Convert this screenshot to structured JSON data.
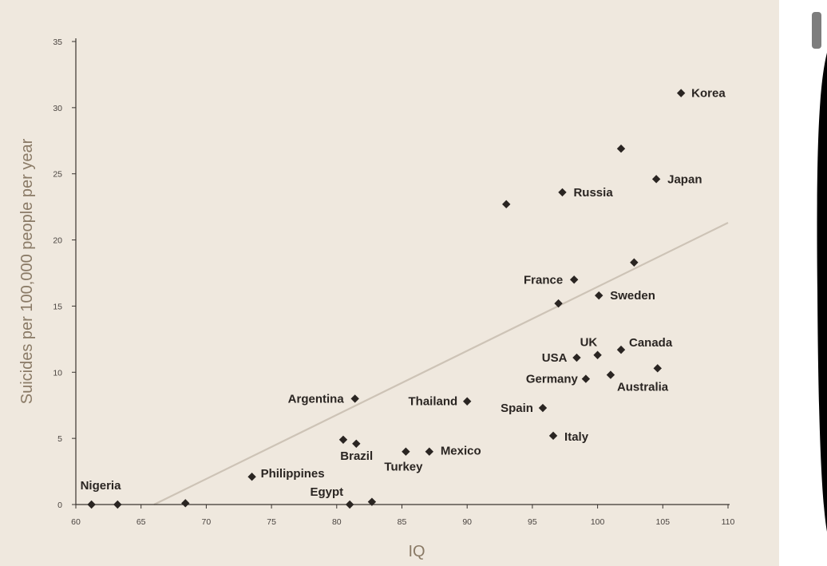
{
  "chart_data": {
    "type": "scatter",
    "xlabel": "IQ",
    "ylabel": "Suicides per 100,000 people per year",
    "xlim": [
      60,
      110
    ],
    "ylim": [
      0,
      35
    ],
    "x_ticks": [
      60,
      65,
      70,
      75,
      80,
      85,
      90,
      95,
      100,
      105,
      110
    ],
    "y_ticks": [
      0,
      5,
      10,
      15,
      20,
      25,
      30,
      35
    ],
    "grid": false,
    "legend": "none",
    "trendline": {
      "x": [
        66,
        110
      ],
      "y": [
        0,
        21.3
      ]
    },
    "colors": {
      "point": "#2a2522",
      "trendline": "#cdc3b6",
      "axis_title": "#8a7a66",
      "background": "#efe8de"
    },
    "points": [
      {
        "label": "Korea",
        "x": 106.4,
        "y": 31.1
      },
      {
        "label": "",
        "x": 101.8,
        "y": 26.9
      },
      {
        "label": "Japan",
        "x": 104.5,
        "y": 24.6
      },
      {
        "label": "Russia",
        "x": 97.3,
        "y": 23.6
      },
      {
        "label": "",
        "x": 93.0,
        "y": 22.7
      },
      {
        "label": "",
        "x": 102.8,
        "y": 18.3
      },
      {
        "label": "France",
        "x": 98.2,
        "y": 17.0
      },
      {
        "label": "Sweden",
        "x": 100.1,
        "y": 15.8
      },
      {
        "label": "",
        "x": 97.0,
        "y": 15.2
      },
      {
        "label": "Canada",
        "x": 101.8,
        "y": 11.7
      },
      {
        "label": "UK",
        "x": 100.0,
        "y": 11.3
      },
      {
        "label": "USA",
        "x": 98.4,
        "y": 11.1
      },
      {
        "label": "",
        "x": 104.6,
        "y": 10.3
      },
      {
        "label": "Australia",
        "x": 101.0,
        "y": 9.8
      },
      {
        "label": "Germany",
        "x": 99.1,
        "y": 9.5
      },
      {
        "label": "Argentina",
        "x": 81.4,
        "y": 8.0
      },
      {
        "label": "Thailand",
        "x": 90.0,
        "y": 7.8
      },
      {
        "label": "Spain",
        "x": 95.8,
        "y": 7.3
      },
      {
        "label": "Italy",
        "x": 96.6,
        "y": 5.2
      },
      {
        "label": "",
        "x": 80.5,
        "y": 4.9
      },
      {
        "label": "Brazil",
        "x": 81.5,
        "y": 4.6
      },
      {
        "label": "Mexico",
        "x": 87.1,
        "y": 4.0
      },
      {
        "label": "Turkey",
        "x": 85.3,
        "y": 4.0
      },
      {
        "label": "Philippines",
        "x": 73.5,
        "y": 2.1
      },
      {
        "label": "Nigeria",
        "x": 61.2,
        "y": 0.0
      },
      {
        "label": "",
        "x": 63.2,
        "y": 0.0
      },
      {
        "label": "",
        "x": 68.4,
        "y": 0.1
      },
      {
        "label": "Egypt",
        "x": 81.0,
        "y": 0.0
      },
      {
        "label": "",
        "x": 82.7,
        "y": 0.2
      }
    ]
  }
}
